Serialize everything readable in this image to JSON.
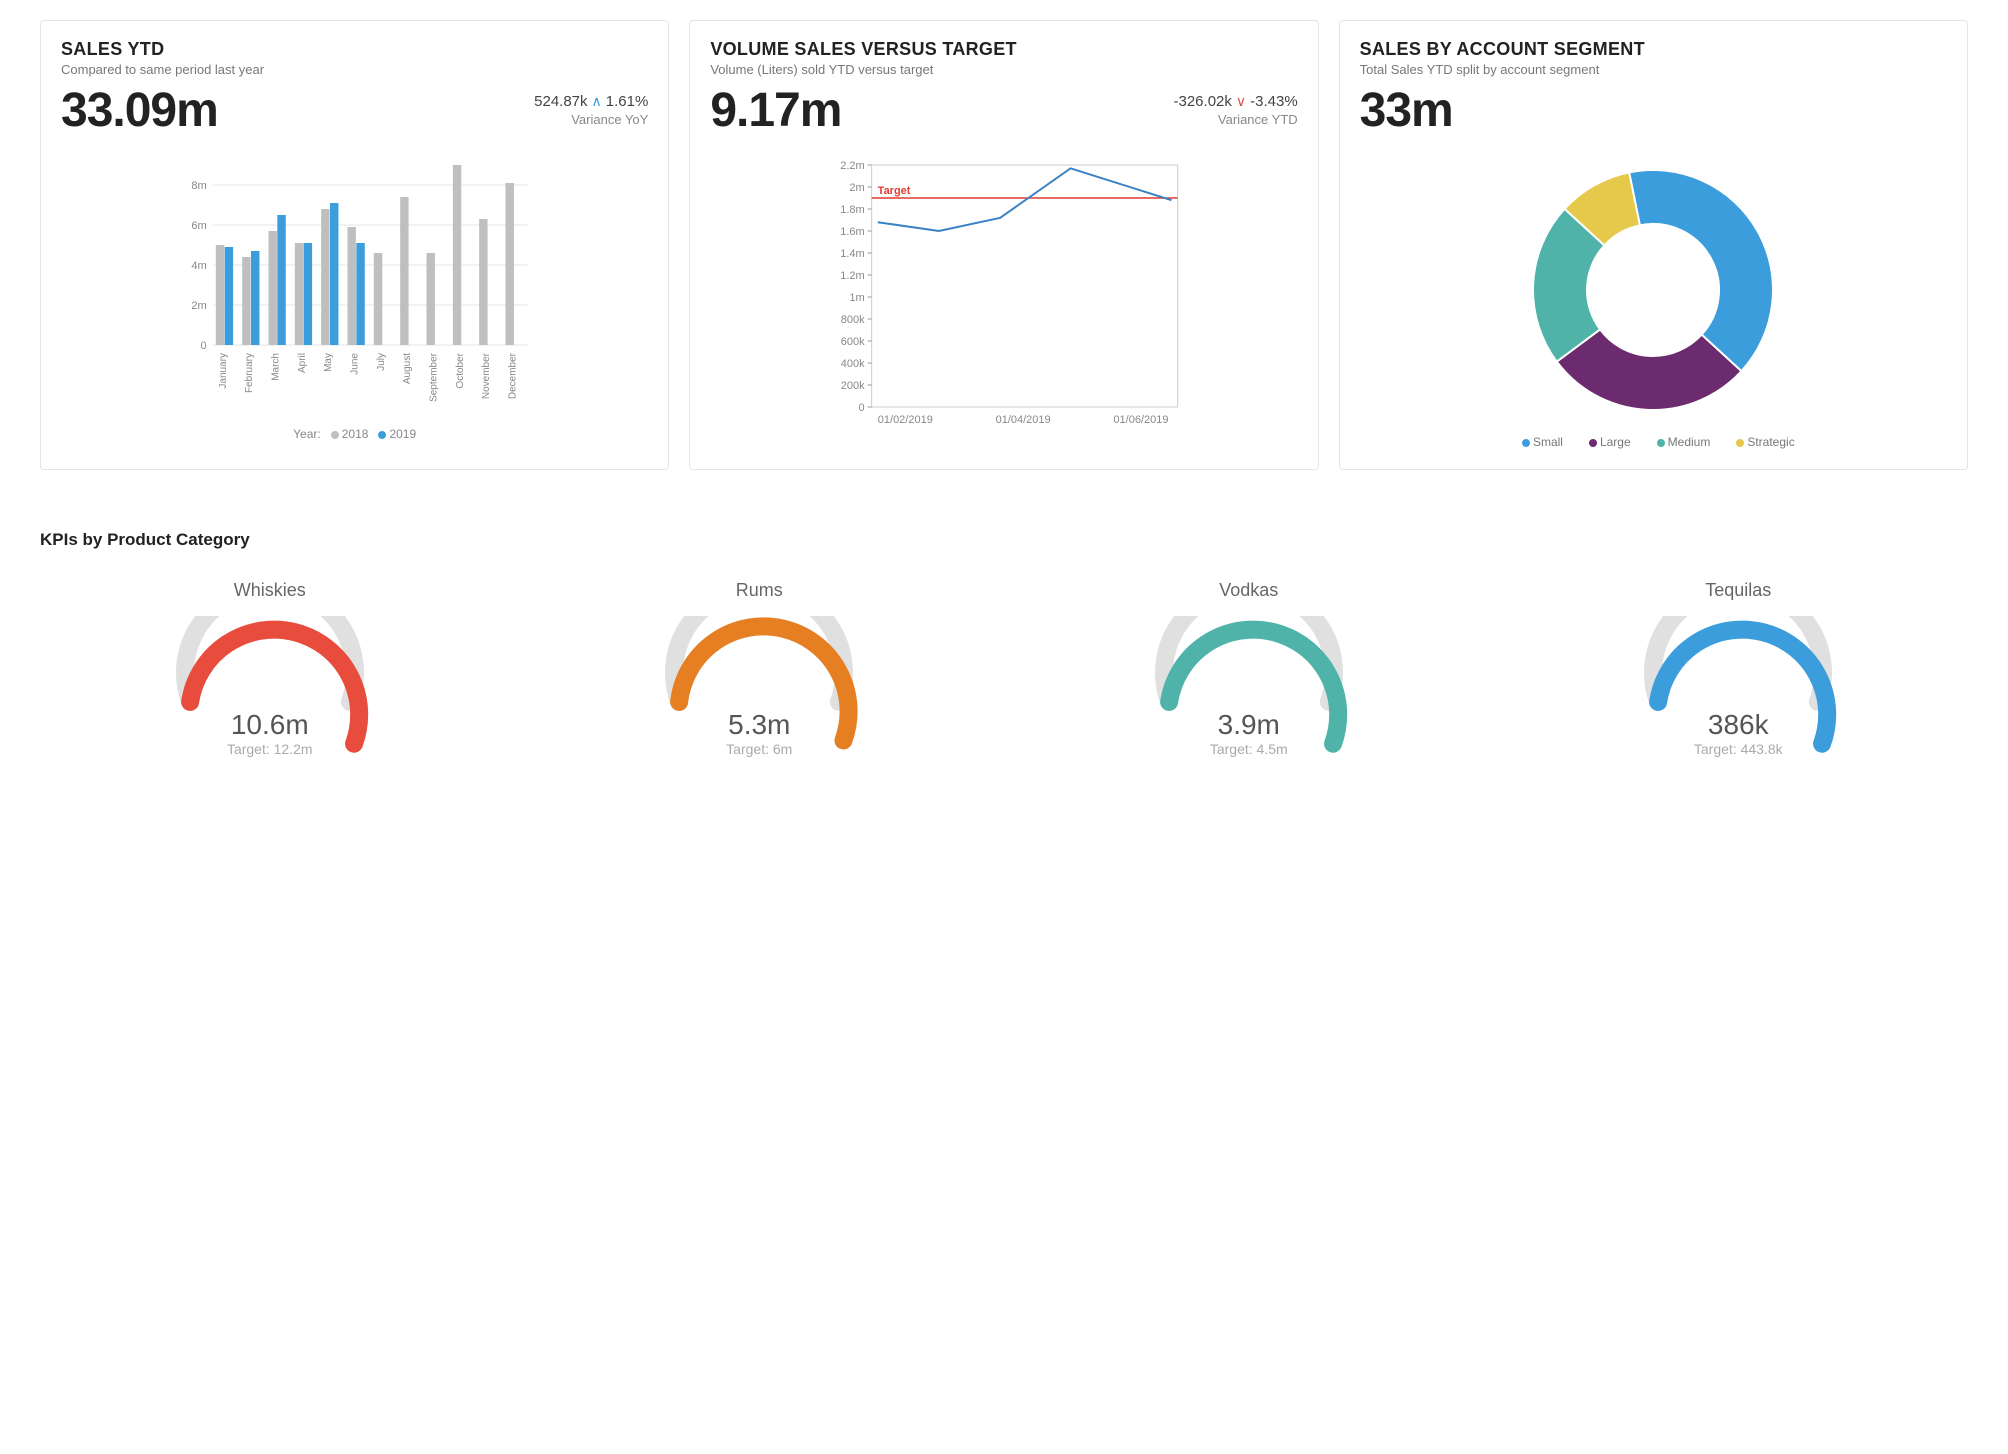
{
  "colors": {
    "blue": "#3b9ddb",
    "gray_bar": "#bfbfbf",
    "grid": "#e6e6e6",
    "axis_text": "#888888",
    "red_line": "#e03c31",
    "line_blue": "#3b82c4",
    "donut": {
      "small": "#3b9ddb",
      "large": "#6b2b6e",
      "medium": "#4fb3a9",
      "strategic": "#e6c84a"
    },
    "gauge_bg": "#e0e0e0",
    "gauge_whiskies": "#e74c3c",
    "gauge_rums": "#e67e22",
    "gauge_vodkas": "#4fb3a9",
    "gauge_tequilas": "#3b9ddb"
  },
  "cards": {
    "sales_ytd": {
      "title": "SALES YTD",
      "subtitle": "Compared to same period last year",
      "value": "33.09m",
      "variance_value": "524.87k",
      "variance_pct": "1.61%",
      "variance_dir": "up",
      "variance_label": "Variance YoY",
      "chart": {
        "type": "bar",
        "ylim": [
          0,
          9
        ],
        "yticks": [
          0,
          2,
          4,
          6,
          8
        ],
        "ytick_labels": [
          "0",
          "2m",
          "4m",
          "6m",
          "8m"
        ],
        "categories": [
          "January",
          "February",
          "March",
          "April",
          "May",
          "June",
          "July",
          "August",
          "September",
          "October",
          "November",
          "December"
        ],
        "series": [
          {
            "name": "2018",
            "color": "#bfbfbf",
            "values": [
              5.0,
              4.4,
              5.7,
              5.1,
              6.8,
              5.9,
              4.6,
              7.4,
              4.6,
              9.0,
              6.3,
              8.1
            ]
          },
          {
            "name": "2019",
            "color": "#3b9ddb",
            "values": [
              4.9,
              4.7,
              6.5,
              5.1,
              7.1,
              5.1,
              null,
              null,
              null,
              null,
              null,
              null
            ]
          }
        ],
        "legend_prefix": "Year:"
      }
    },
    "volume": {
      "title": "VOLUME SALES VERSUS TARGET",
      "subtitle": "Volume (Liters) sold YTD versus target",
      "value": "9.17m",
      "variance_value": "-326.02k",
      "variance_pct": "-3.43%",
      "variance_dir": "down",
      "variance_label": "Variance YTD",
      "chart": {
        "type": "line",
        "ylim": [
          0,
          2.2
        ],
        "yticks": [
          0,
          0.2,
          0.4,
          0.6,
          0.8,
          1.0,
          1.2,
          1.4,
          1.6,
          1.8,
          2.0,
          2.2
        ],
        "ytick_labels": [
          "0",
          "200k",
          "400k",
          "600k",
          "800k",
          "1m",
          "1.2m",
          "1.4m",
          "1.6m",
          "1.8m",
          "2m",
          "2.2m"
        ],
        "xticks": [
          "01/02/2019",
          "01/04/2019",
          "01/06/2019"
        ],
        "target_value": 1.9,
        "target_label": "Target",
        "target_color": "#e03c31",
        "line_color": "#3b82c4",
        "points": [
          {
            "x": 0.02,
            "y": 1.68
          },
          {
            "x": 0.22,
            "y": 1.6
          },
          {
            "x": 0.42,
            "y": 1.72
          },
          {
            "x": 0.65,
            "y": 2.17
          },
          {
            "x": 0.98,
            "y": 1.88
          }
        ]
      }
    },
    "segment": {
      "title": "SALES BY ACCOUNT SEGMENT",
      "subtitle": "Total Sales YTD split by account segment",
      "value": "33m",
      "chart": {
        "type": "donut",
        "inner_ratio": 0.55,
        "slices": [
          {
            "label": "Small",
            "value": 40,
            "color": "#3b9ddb"
          },
          {
            "label": "Large",
            "value": 28,
            "color": "#6b2b6e"
          },
          {
            "label": "Medium",
            "value": 22,
            "color": "#4fb3a9"
          },
          {
            "label": "Strategic",
            "value": 10,
            "color": "#e6c84a"
          }
        ]
      }
    }
  },
  "kpi_section": {
    "title": "KPIs by Product Category",
    "gauges": [
      {
        "label": "Whiskies",
        "value": "10.6m",
        "target": "Target: 12.2m",
        "fill": 0.87,
        "color": "#e74c3c"
      },
      {
        "label": "Rums",
        "value": "5.3m",
        "target": "Target: 6m",
        "fill": 0.88,
        "color": "#e67e22"
      },
      {
        "label": "Vodkas",
        "value": "3.9m",
        "target": "Target: 4.5m",
        "fill": 0.87,
        "color": "#4fb3a9"
      },
      {
        "label": "Tequilas",
        "value": "386k",
        "target": "Target: 443.8k",
        "fill": 0.87,
        "color": "#3b9ddb"
      }
    ]
  }
}
